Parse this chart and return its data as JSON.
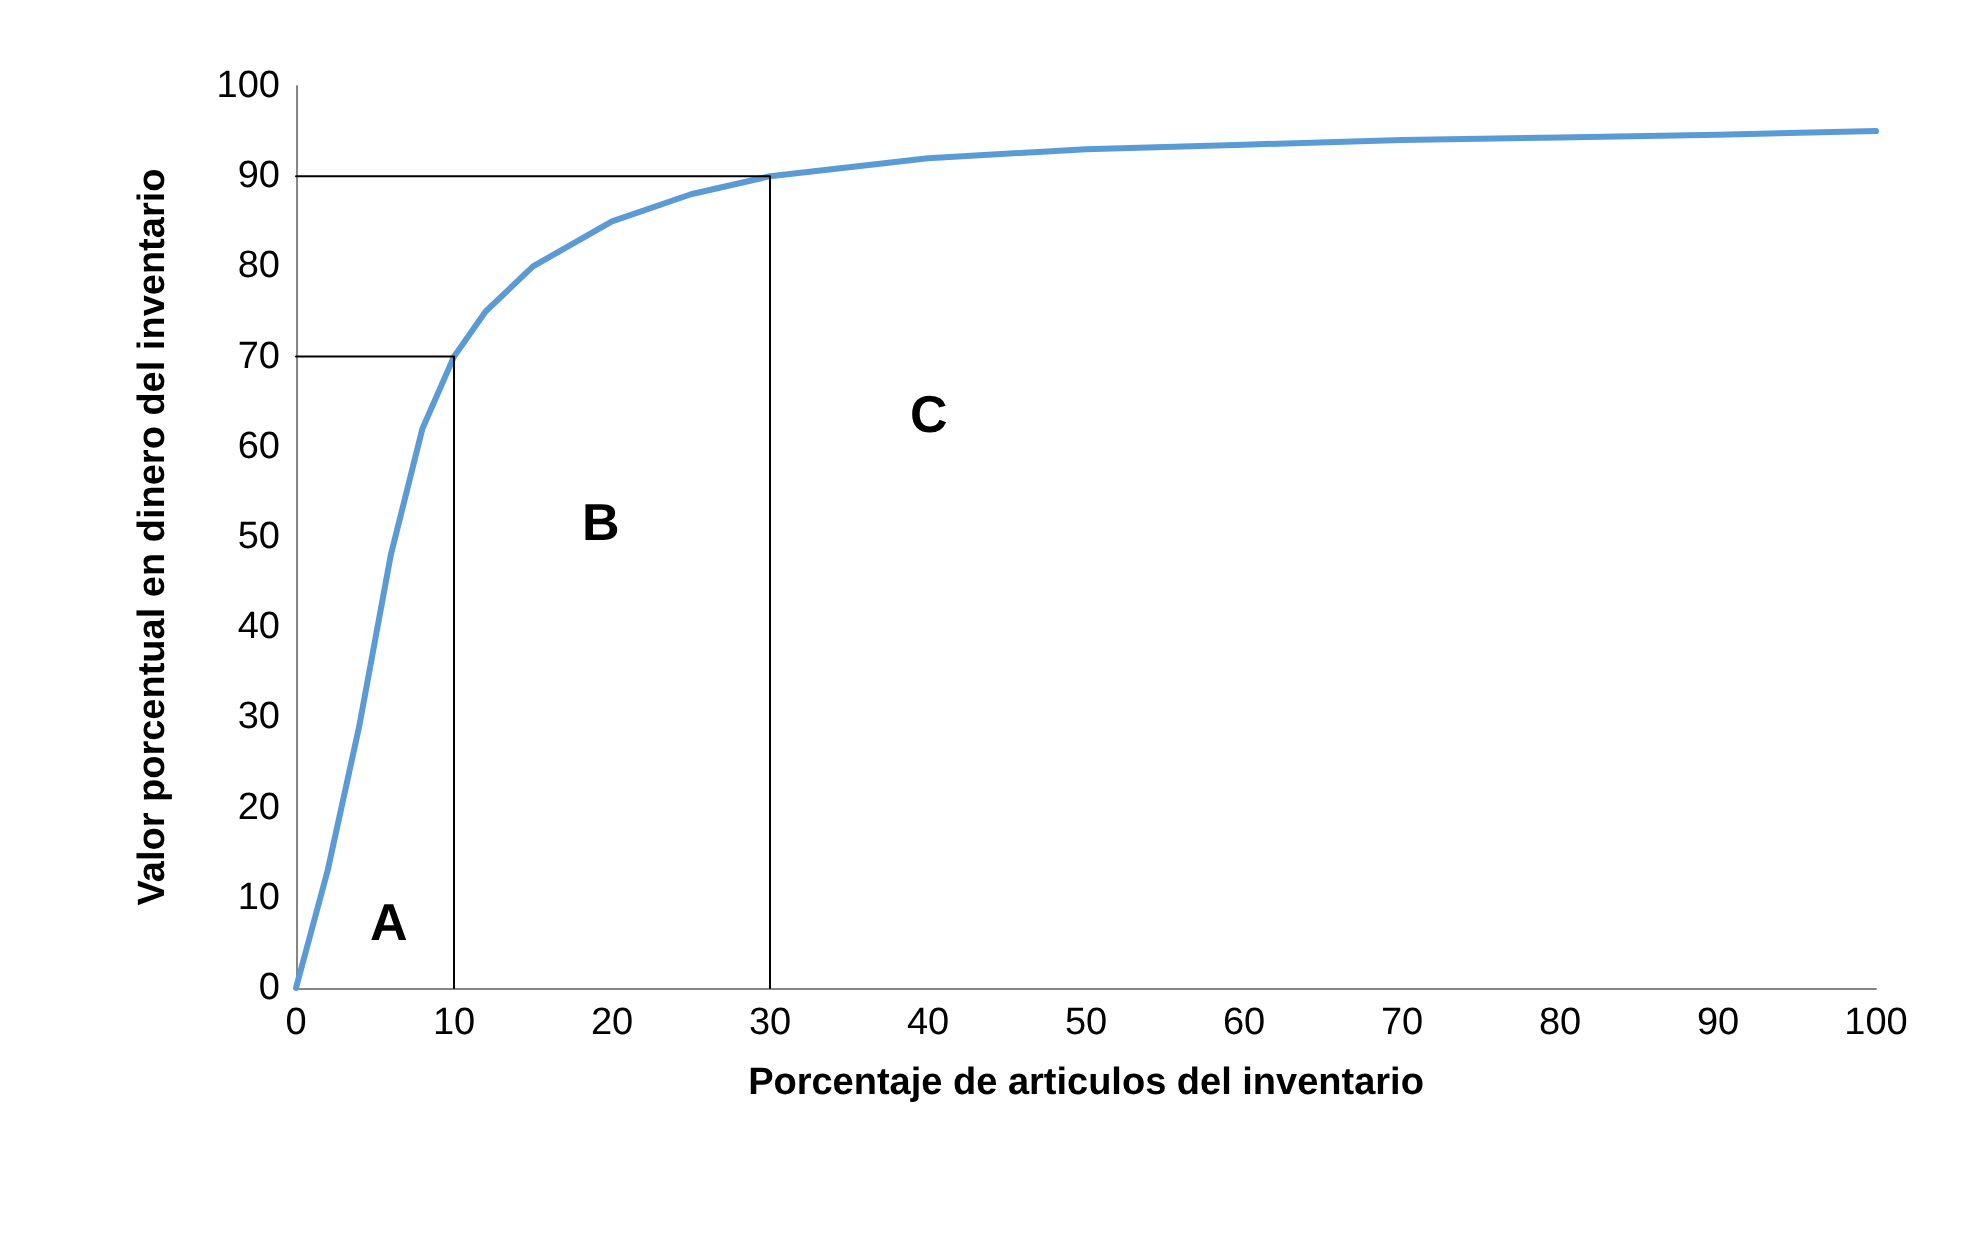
{
  "chart_data": {
    "type": "line",
    "xlabel": "Porcentaje de articulos del inventario",
    "ylabel": "Valor porcentual en dinero del inventario",
    "xlim": [
      0,
      100
    ],
    "xticks": [
      0,
      10,
      20,
      30,
      40,
      50,
      60,
      70,
      80,
      90,
      100
    ],
    "ylim": [
      0,
      100
    ],
    "yticks": [
      0,
      10,
      20,
      30,
      40,
      50,
      60,
      70,
      80,
      90,
      100
    ],
    "grid": false,
    "marker": "none",
    "line_style": "solid",
    "series": [
      {
        "color": "#5b9bd5",
        "x": [
          0,
          2,
          4,
          6,
          8,
          10,
          12,
          15,
          20,
          25,
          30,
          40,
          50,
          60,
          70,
          80,
          90,
          100
        ],
        "values": [
          0,
          13,
          29,
          48,
          62,
          70,
          75,
          80,
          85,
          88,
          90,
          92,
          93,
          93.5,
          94,
          94.3,
          94.6,
          95
        ]
      },
      {
        "color": "#000000",
        "x": [
          0,
          10,
          10
        ],
        "values": [
          70,
          70,
          0
        ]
      },
      {
        "color": "#000000",
        "x": [
          0,
          30,
          30
        ],
        "values": [
          90,
          90,
          0
        ]
      }
    ],
    "annotations": [
      "A",
      "B",
      "C"
    ]
  }
}
